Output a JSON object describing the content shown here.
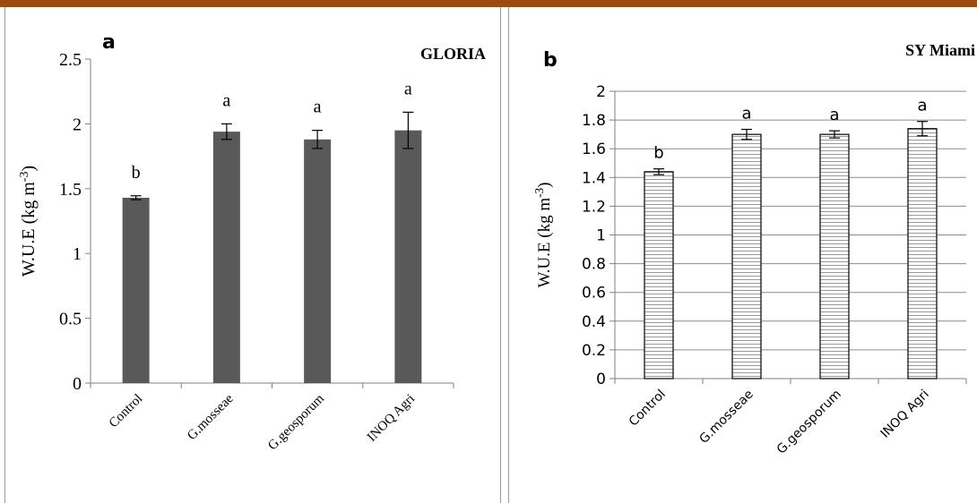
{
  "chart_data": [
    {
      "type": "bar",
      "panel_label": "a",
      "title": "GLORIA",
      "ylabel": "W.U.E (kg m-3)",
      "ylabel_base": "W.U.E (kg m",
      "ylabel_sup": "-3",
      "ylabel_close": ")",
      "categories": [
        "Control",
        "G.mosseae",
        "G.geosporum",
        "INOQ Agri"
      ],
      "values": [
        1.43,
        1.94,
        1.88,
        1.95
      ],
      "errors": [
        0.015,
        0.06,
        0.07,
        0.14
      ],
      "significance": [
        "b",
        "a",
        "a",
        "a"
      ],
      "ylim": [
        0,
        2.5
      ],
      "yticks": [
        "0",
        "0.5",
        "1",
        "1.5",
        "2",
        "2.5"
      ],
      "bar_color": "#595959",
      "gridlines": false
    },
    {
      "type": "bar",
      "panel_label": "b",
      "title": "SY Miami",
      "ylabel": "W.U.E (kg m-3)",
      "ylabel_base": "W.U.E (kg m",
      "ylabel_sup": "-3",
      "ylabel_close": ")",
      "categories": [
        "Control",
        "G.mosseae",
        "G.geosporum",
        "INOQ Agri"
      ],
      "values": [
        1.44,
        1.7,
        1.7,
        1.74
      ],
      "errors": [
        0.02,
        0.035,
        0.025,
        0.05
      ],
      "significance": [
        "b",
        "a",
        "a",
        "a"
      ],
      "ylim": [
        0,
        2
      ],
      "yticks": [
        "0",
        "0.2",
        "0.4",
        "0.6",
        "0.8",
        "1",
        "1.2",
        "1.4",
        "1.6",
        "1.8",
        "2"
      ],
      "bar_color": "#ffffff",
      "bar_pattern": "horizontal-stripes",
      "gridlines": true
    }
  ]
}
